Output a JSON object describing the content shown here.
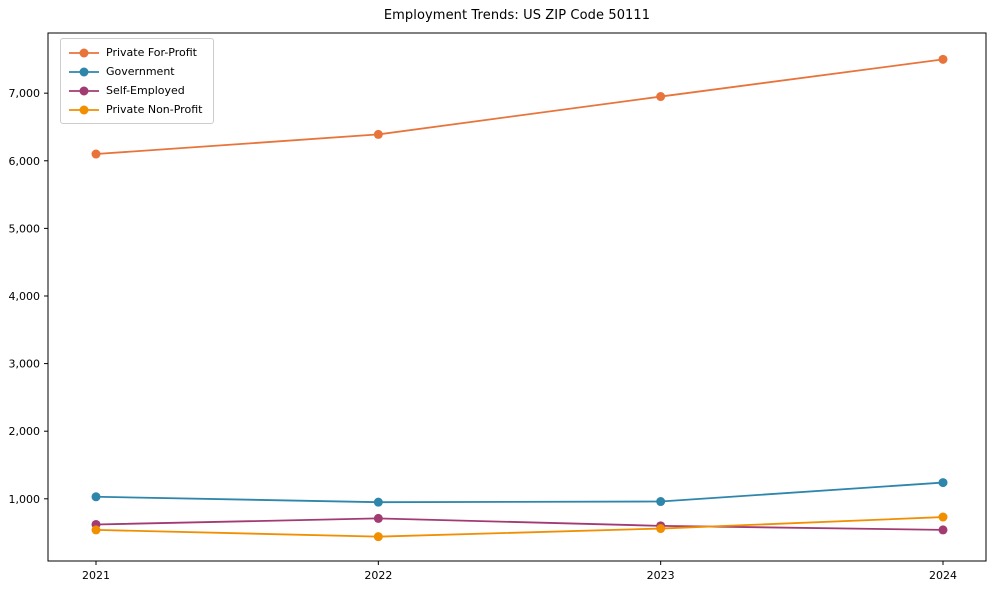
{
  "figure": {
    "background": "#ffffff",
    "spine_color": "#000000",
    "text_color": "#000000"
  },
  "chart_data": {
    "type": "line",
    "title": "Employment Trends: US ZIP Code 50111",
    "xlabel": "",
    "ylabel": "",
    "x_labels": [
      "2021",
      "2022",
      "2023",
      "2024"
    ],
    "series": [
      {
        "name": "Private For-Profit",
        "color": "#E8743B",
        "values": [
          6100,
          6390,
          6950,
          7500
        ]
      },
      {
        "name": "Government",
        "color": "#2E86AB",
        "values": [
          1030,
          950,
          960,
          1240
        ]
      },
      {
        "name": "Self-Employed",
        "color": "#A23B72",
        "values": [
          620,
          710,
          600,
          540
        ]
      },
      {
        "name": "Private Non-Profit",
        "color": "#F18F01",
        "values": [
          540,
          440,
          560,
          730
        ]
      }
    ],
    "ylim": [
      80,
      7890
    ],
    "yticks": [
      1000,
      2000,
      3000,
      4000,
      5000,
      6000,
      7000
    ],
    "ytick_labels": [
      "1,000",
      "2,000",
      "3,000",
      "4,000",
      "5,000",
      "6,000",
      "7,000"
    ],
    "grid": false,
    "axes_box": true,
    "marker": "circle",
    "legend_position": "upper-left"
  }
}
